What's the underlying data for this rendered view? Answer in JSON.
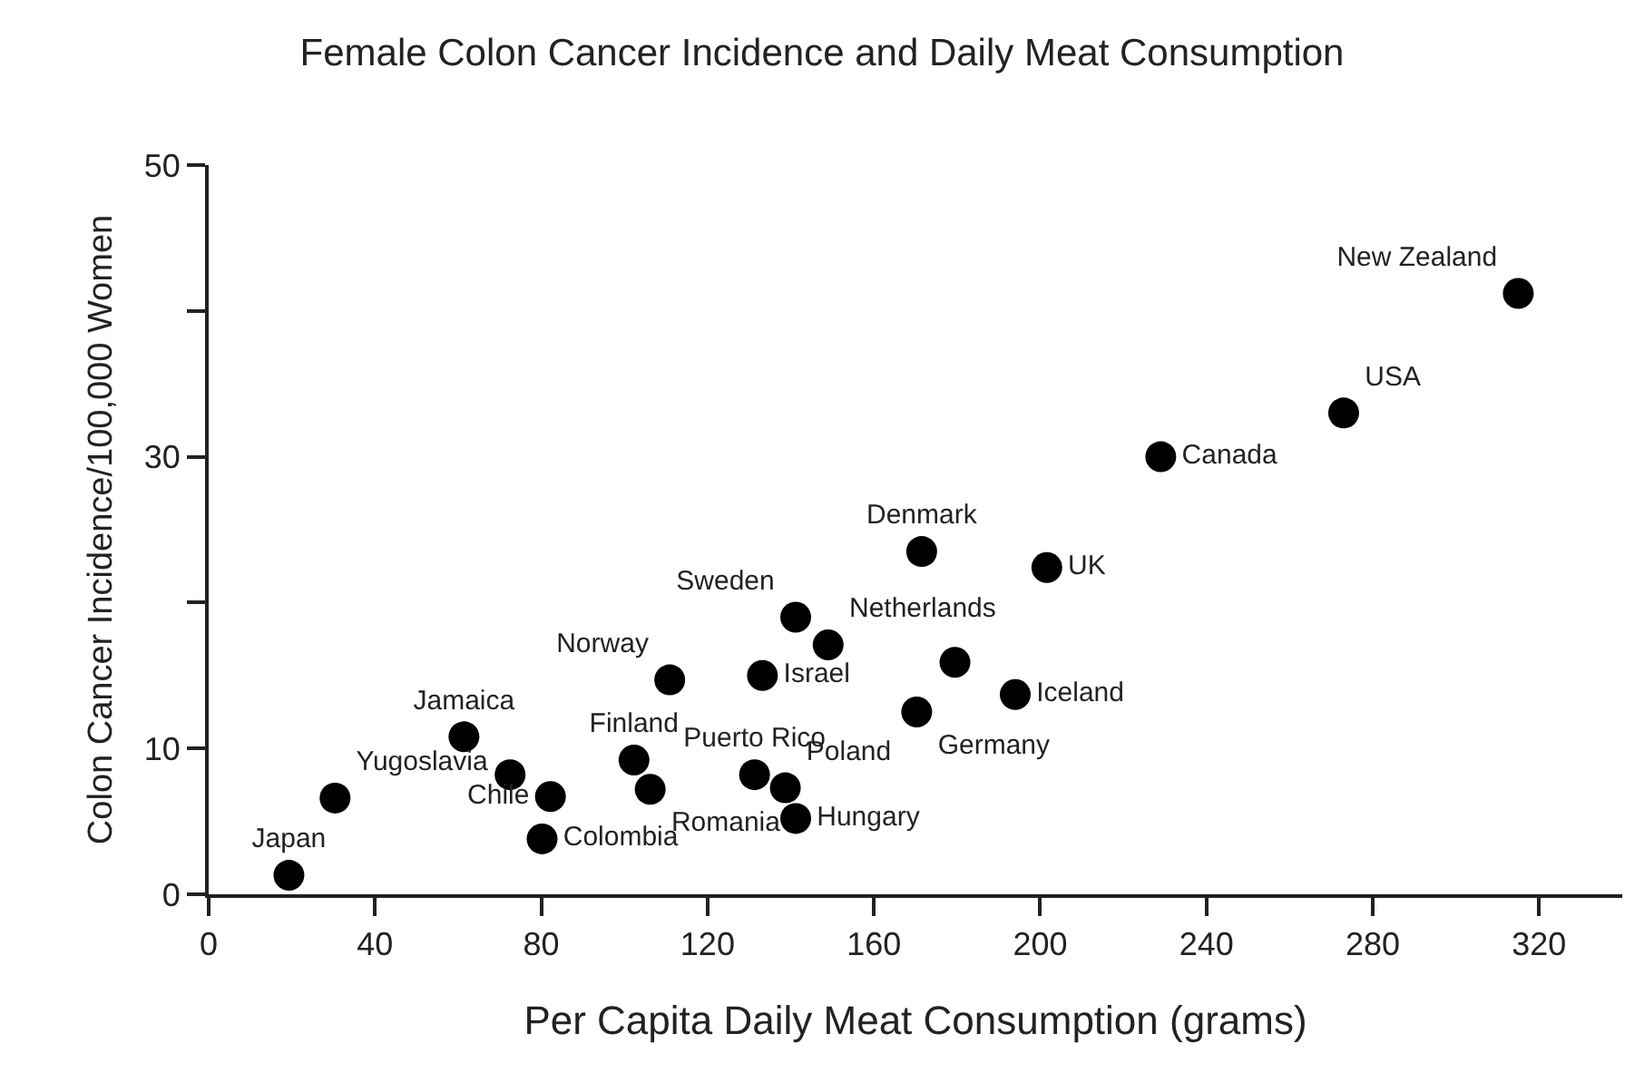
{
  "chart_data": {
    "type": "scatter",
    "title": "Female Colon Cancer Incidence and Daily Meat Consumption",
    "xlabel": "Per Capita Daily Meat Consumption (grams)",
    "ylabel": "Colon Cancer Incidence/100,000 Women",
    "color": "#000000",
    "marker": "circle",
    "x": [
      19.3,
      30.4,
      61.4,
      72.5,
      82.2,
      80.2,
      102.3,
      106.2,
      110.9,
      133.2,
      131.3,
      138.7,
      141.2,
      141.2,
      149,
      171.5,
      170.3,
      179.5,
      194,
      201.6,
      229,
      273,
      315
    ],
    "values": [
      1.3,
      6.6,
      10.8,
      8.2,
      6.7,
      3.8,
      9.2,
      7.2,
      14.7,
      15,
      8.2,
      7.3,
      5.2,
      19,
      17.1,
      23.5,
      12.5,
      15.9,
      13.7,
      22.4,
      30,
      33,
      41.2
    ],
    "value_labels": [
      "Japan",
      "Yugoslavia",
      "Jamaica",
      null,
      "Chile",
      "Colombia",
      "Finland",
      "Romania",
      "Norway",
      "Israel",
      "Puerto Rico",
      "Poland",
      "Hungary",
      "Sweden",
      "Netherlands",
      "Denmark",
      "Germany",
      null,
      "Iceland",
      "UK",
      "Canada",
      "USA",
      "New Zealand"
    ],
    "xlim": [
      0,
      340
    ],
    "ylim": [
      0,
      50
    ],
    "xticks": [
      0,
      40,
      80,
      120,
      160,
      200,
      240,
      280,
      320
    ],
    "yticks": [
      0,
      10,
      {
        "value": 20,
        "label": null
      },
      30,
      {
        "value": 40,
        "label": null
      },
      50
    ]
  }
}
